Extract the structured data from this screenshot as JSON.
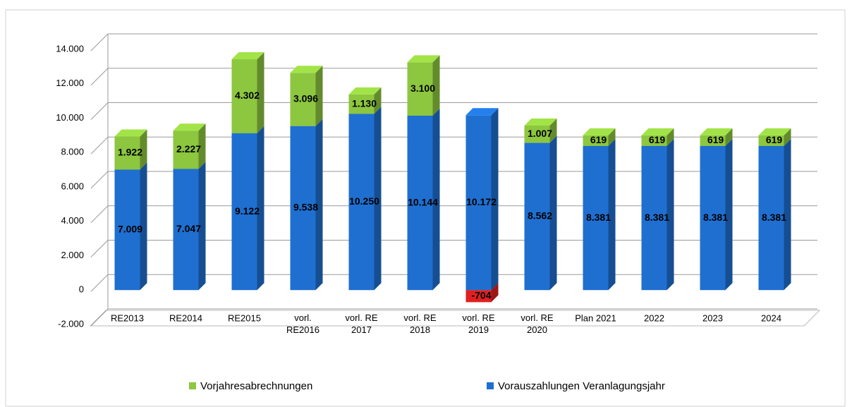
{
  "chart_data": {
    "type": "bar3d_stacked",
    "categories": [
      "RE2013",
      "RE2014",
      "RE2015",
      "vorl. RE2016",
      "vorl. RE 2017",
      "vorl. RE 2018",
      "vorl. RE 2019",
      "vorl. RE 2020",
      "Plan 2021",
      "2022",
      "2023",
      "2024"
    ],
    "series": [
      {
        "name": "Vorauszahlungen Veranlagungsjahr",
        "color": "#1f6fd0",
        "values": [
          7009,
          7047,
          9122,
          9538,
          10250,
          10144,
          10172,
          8562,
          8381,
          8381,
          8381,
          8381
        ],
        "value_labels": [
          "7.009",
          "7.047",
          "9.122",
          "9.538",
          "10.250",
          "10.144",
          "10.172",
          "8.562",
          "8.381",
          "8.381",
          "8.381",
          "8.381"
        ]
      },
      {
        "name": "Vorjahresabrechnungen",
        "color": "#8dc63f",
        "negative_color": "#e02020",
        "values": [
          1922,
          2227,
          4302,
          3096,
          1130,
          3100,
          -704,
          1007,
          619,
          619,
          619,
          619
        ],
        "value_labels": [
          "1.922",
          "2.227",
          "4.302",
          "3.096",
          "1.130",
          "3.100",
          "-704",
          "1.007",
          "619",
          "619",
          "619",
          "619"
        ]
      }
    ],
    "legend_order": [
      1,
      0
    ],
    "ylim": [
      -2000,
      14000
    ],
    "yticks": [
      {
        "value": -2000,
        "label": "-2.000"
      },
      0,
      {
        "value": 2000,
        "label": "2.000"
      },
      {
        "value": 4000,
        "label": "4.000"
      },
      {
        "value": 6000,
        "label": "6.000"
      },
      {
        "value": 8000,
        "label": "8.000"
      },
      {
        "value": 10000,
        "label": "10.000"
      },
      {
        "value": 12000,
        "label": "12.000"
      },
      {
        "value": 14000,
        "label": "14.000"
      }
    ],
    "grid": true
  }
}
